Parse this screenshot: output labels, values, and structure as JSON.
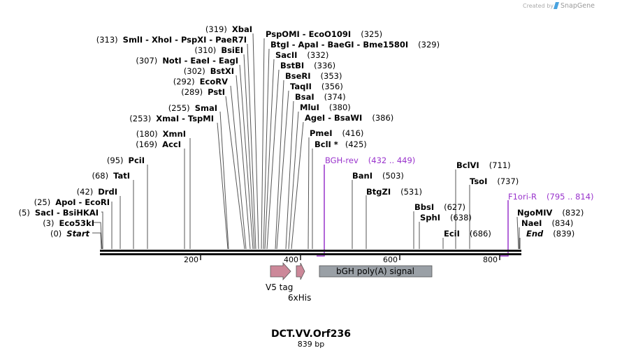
{
  "brand": {
    "credit": "Created by",
    "name": "SnapGene"
  },
  "title": "DCT.VV.Orf236",
  "length_label": "839 bp",
  "sequence_length": 839,
  "ruler_ticks": [
    "200",
    "400",
    "600",
    "800"
  ],
  "sites": [
    {
      "name": "Start",
      "pos": "(0)",
      "italic": true
    },
    {
      "name": "Eco53kI",
      "pos": "(3)"
    },
    {
      "name": "SacI  - BsiHKAI",
      "pos": "(5)"
    },
    {
      "name": "ApoI  - EcoRI",
      "pos": "(25)"
    },
    {
      "name": "DrdI",
      "pos": "(42)"
    },
    {
      "name": "TatI",
      "pos": "(68)"
    },
    {
      "name": "PciI",
      "pos": "(95)"
    },
    {
      "name": "AccI",
      "pos": "(169)"
    },
    {
      "name": "XmnI",
      "pos": "(180)"
    },
    {
      "name": "XmaI  - TspMI",
      "pos": "(253)"
    },
    {
      "name": "SmaI",
      "pos": "(255)"
    },
    {
      "name": "PstI",
      "pos": "(289)"
    },
    {
      "name": "EcoRV",
      "pos": "(292)"
    },
    {
      "name": "BstXI",
      "pos": "(302)"
    },
    {
      "name": "NotI  - EaeI  - EagI",
      "pos": "(307)"
    },
    {
      "name": "BsiEI",
      "pos": "(310)"
    },
    {
      "name": "SmlI  - XhoI  - PspXI  - PaeR7I",
      "pos": "(313)"
    },
    {
      "name": "XbaI",
      "pos": "(319)"
    },
    {
      "name": "PspOMI  - EcoO109I",
      "pos": "(325)"
    },
    {
      "name": "BtgI  - ApaI  - BaeGI  - Bme1580I",
      "pos": "(329)"
    },
    {
      "name": "SacII",
      "pos": "(332)"
    },
    {
      "name": "BstBI",
      "pos": "(336)"
    },
    {
      "name": "BseRI",
      "pos": "(353)"
    },
    {
      "name": "TaqII",
      "pos": "(356)"
    },
    {
      "name": "BsaI",
      "pos": "(374)"
    },
    {
      "name": "MluI",
      "pos": "(380)"
    },
    {
      "name": "AgeI  - BsaWI",
      "pos": "(386)"
    },
    {
      "name": "PmeI",
      "pos": "(416)"
    },
    {
      "name": "BclI *",
      "pos": "(425)"
    },
    {
      "name": "BanI",
      "pos": "(503)"
    },
    {
      "name": "BtgZI",
      "pos": "(531)"
    },
    {
      "name": "BbsI",
      "pos": "(627)"
    },
    {
      "name": "SphI",
      "pos": "(638)"
    },
    {
      "name": "EciI",
      "pos": "(686)"
    },
    {
      "name": "BclVI",
      "pos": "(711)"
    },
    {
      "name": "TsoI",
      "pos": "(737)"
    },
    {
      "name": "NgoMIV",
      "pos": "(832)"
    },
    {
      "name": "NaeI",
      "pos": "(834)"
    },
    {
      "name": "End",
      "pos": "(839)",
      "italic": true
    }
  ],
  "primers": [
    {
      "name": "BGH-rev",
      "range": "(432 .. 449)",
      "color": "#9933cc"
    },
    {
      "name": "F1ori-R",
      "range": "(795 .. 814)",
      "color": "#9933cc"
    }
  ],
  "features": [
    {
      "name": "V5 tag",
      "color": "#cc8899"
    },
    {
      "name": "6xHis",
      "color": "#cc8899"
    },
    {
      "name": "bGH poly(A) signal",
      "color": "#9aa0a6"
    }
  ]
}
